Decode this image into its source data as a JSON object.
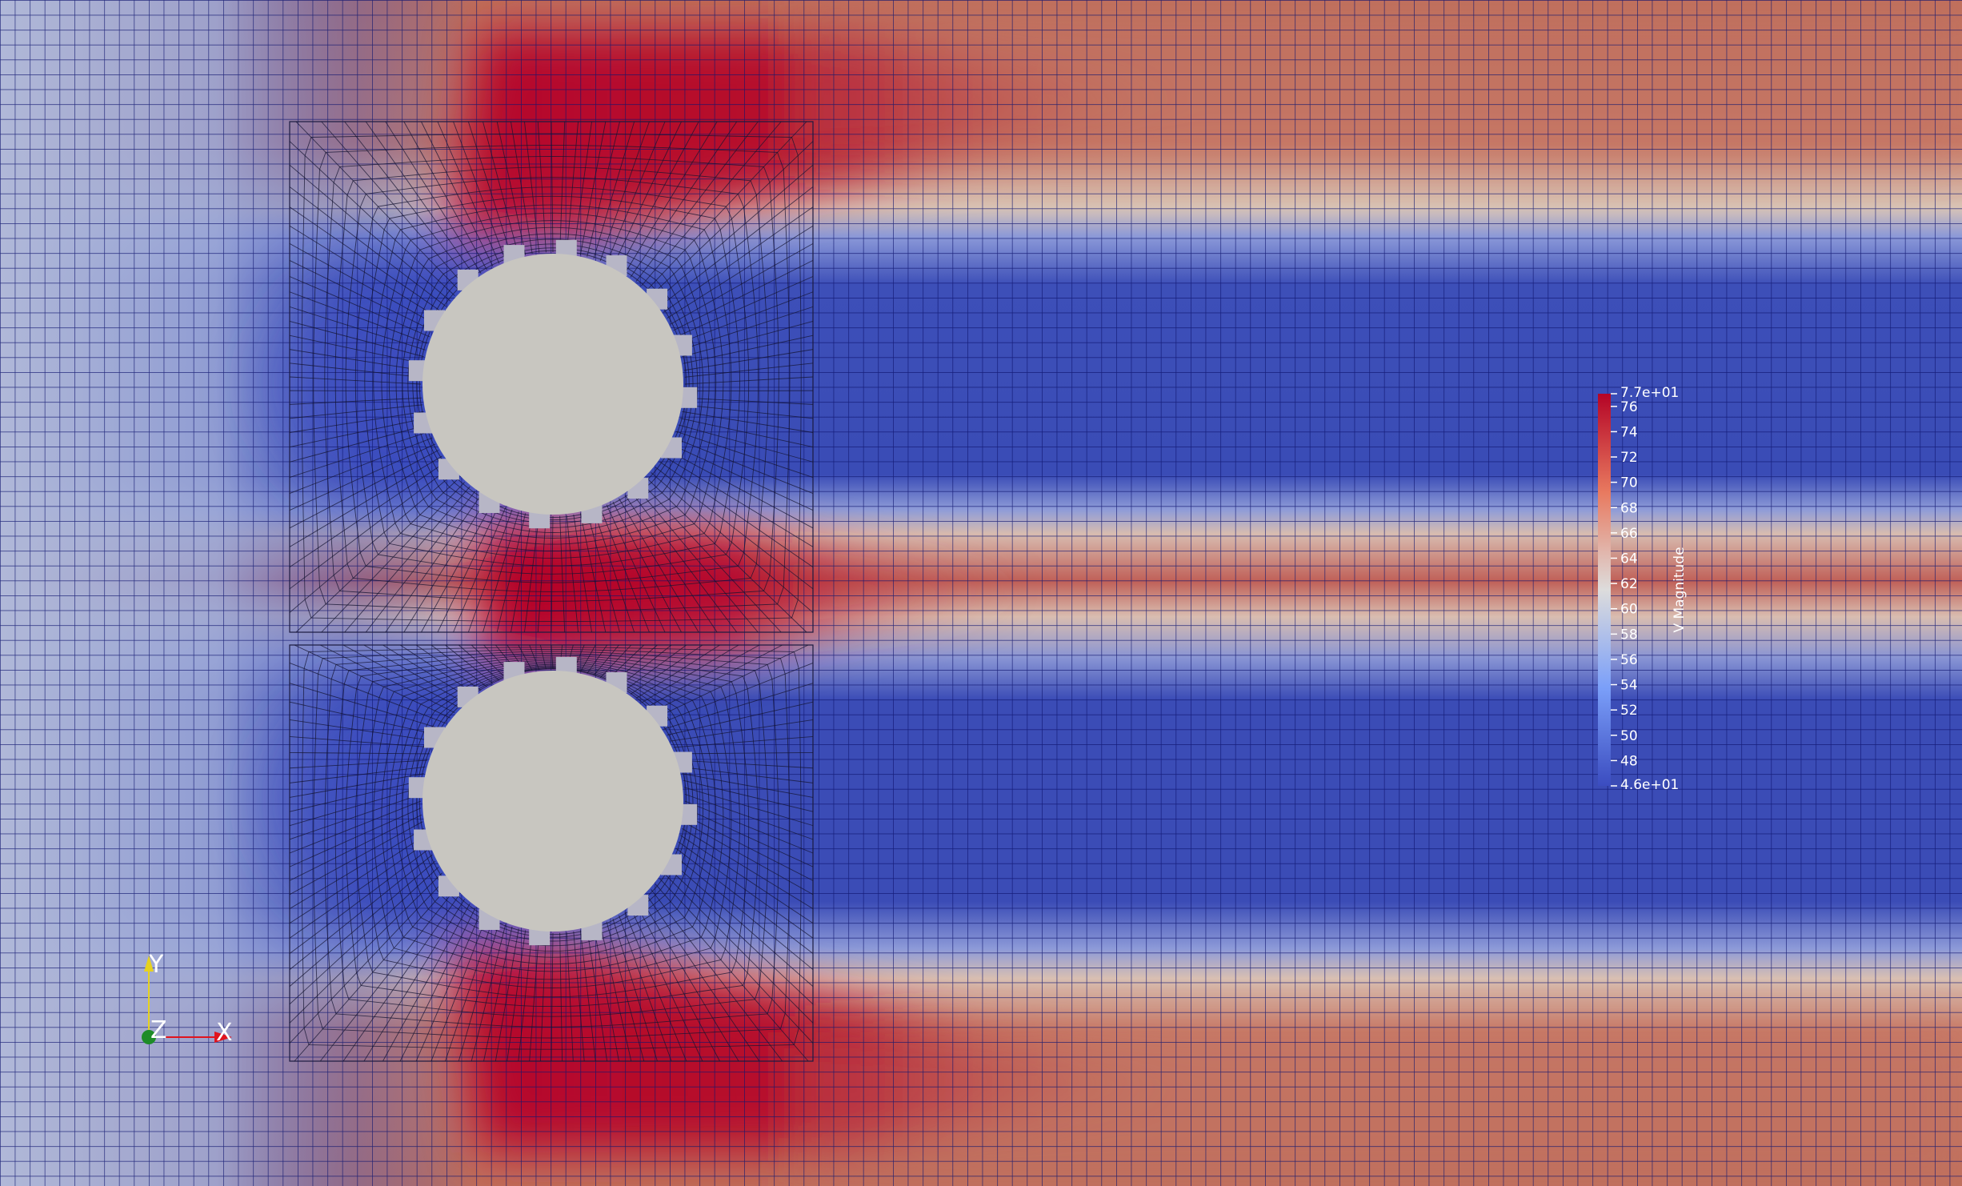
{
  "scene": {
    "background_colors": {
      "low": "#3b4cc0",
      "mid": "#dddcdc",
      "high": "#b40426",
      "obstacle": "#c8c6c0",
      "mesh_lines": "#0f1570",
      "inner_mesh_lines": "#101010"
    }
  },
  "colorbar": {
    "title": "V Magnitude",
    "range": [
      46,
      77
    ],
    "max_label": "7.7e+01",
    "min_label": "4.6e+01",
    "ticks": [
      "76",
      "74",
      "72",
      "70",
      "68",
      "66",
      "64",
      "62",
      "60",
      "58",
      "56",
      "54",
      "52",
      "50",
      "48"
    ],
    "tick_values": [
      76,
      74,
      72,
      70,
      68,
      66,
      64,
      62,
      60,
      58,
      56,
      54,
      52,
      50,
      48
    ]
  },
  "orientation_axes": {
    "x_label": "X",
    "y_label": "Y",
    "z_label": "Z",
    "x_color": "#e0141e",
    "y_color": "#e6d21e",
    "z_color": "#1e8c28"
  }
}
